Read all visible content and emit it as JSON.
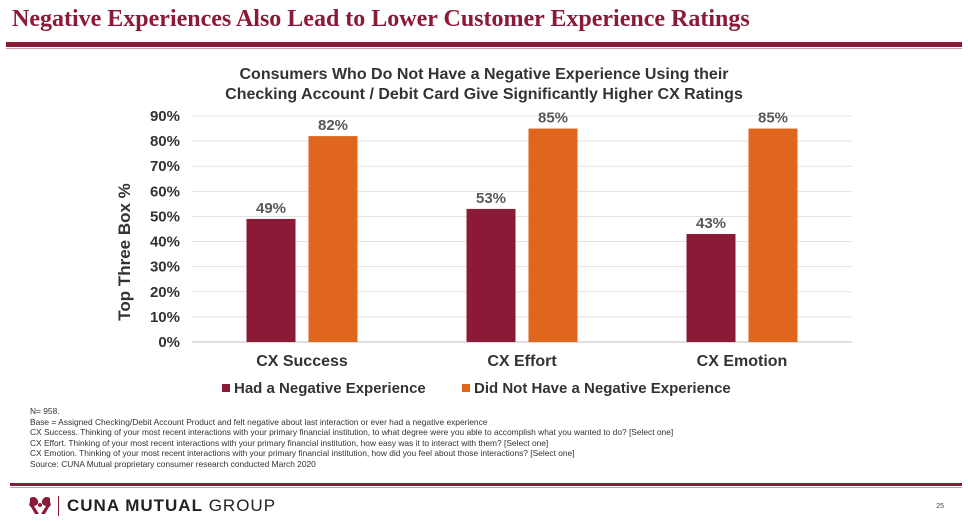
{
  "slide": {
    "title": "Negative Experiences Also Lead to Lower Customer Experience Ratings",
    "page_number": "25"
  },
  "chart_data": {
    "type": "bar",
    "title_lines": [
      "Consumers Who Do Not Have a Negative Experience Using their",
      "Checking Account / Debit Card Give Significantly Higher CX Ratings"
    ],
    "ylabel": "Top Three Box %",
    "ylim": [
      0,
      90
    ],
    "yticks": [
      "0%",
      "10%",
      "20%",
      "30%",
      "40%",
      "50%",
      "60%",
      "70%",
      "80%",
      "90%"
    ],
    "categories": [
      "CX Success",
      "CX Effort",
      "CX Emotion"
    ],
    "series": [
      {
        "name": "Had a Negative Experience",
        "color": "#8b1a36",
        "values": [
          49,
          53,
          43
        ],
        "labels": [
          "49%",
          "53%",
          "43%"
        ]
      },
      {
        "name": "Did Not Have a Negative Experience",
        "color": "#e0661e",
        "values": [
          82,
          85,
          85
        ],
        "labels": [
          "82%",
          "85%",
          "85%"
        ]
      }
    ],
    "grid": true,
    "legend_position": "bottom"
  },
  "notes": [
    "N= 958.",
    "Base = Assigned Checking/Debit Account Product and felt negative about last interaction or ever had a negative experience",
    "CX Success. Thinking of your most recent interactions with your primary financial institution, to what degree were you able to accomplish what you wanted to do? [Select one]",
    "CX Effort. Thinking of your most recent interactions with your primary financial institution, how easy was it to interact with them? [Select one]",
    "CX Emotion. Thinking of your most recent interactions with your primary financial institution, how did you feel about those interactions? [Select one]",
    "Source: CUNA Mutual proprietary consumer research conducted March 2020"
  ],
  "footer": {
    "logo_bold": "CUNA MUTUAL",
    "logo_light": "GROUP"
  }
}
